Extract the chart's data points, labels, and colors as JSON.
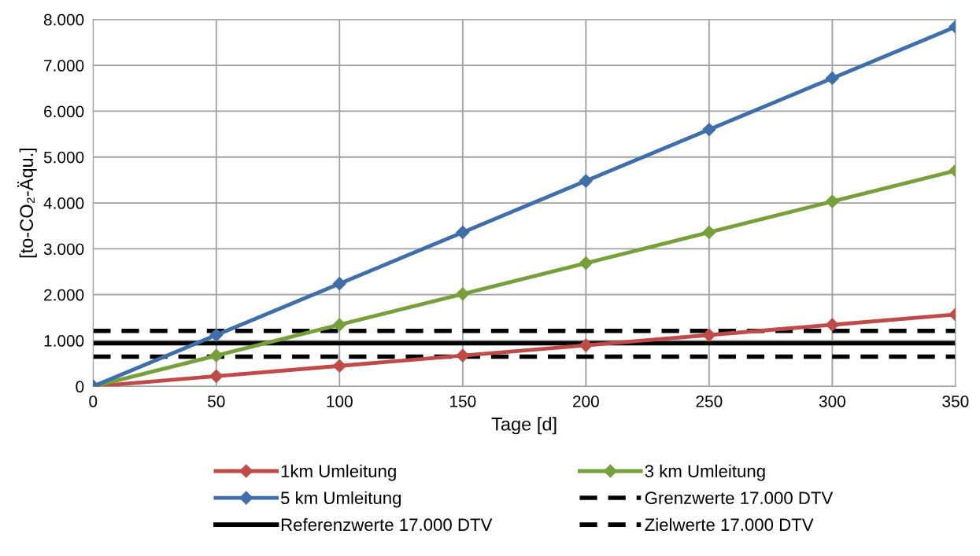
{
  "chart_data": {
    "type": "line",
    "xlabel": "Tage [d]",
    "ylabel": "[to-CO₂-Äqu.]",
    "x": [
      0,
      50,
      100,
      150,
      200,
      250,
      300,
      350
    ],
    "series": [
      {
        "name": "1km Umleitung",
        "color": "#be4b48",
        "values": [
          0,
          224,
          448,
          672,
          896,
          1120,
          1344,
          1568
        ]
      },
      {
        "name": "3 km Umleitung",
        "color": "#77a03b",
        "values": [
          0,
          672,
          1344,
          2016,
          2688,
          3360,
          4032,
          4704
        ]
      },
      {
        "name": "5 km Umleitung",
        "color": "#3f6ea8",
        "values": [
          0,
          1120,
          2240,
          3360,
          4480,
          5600,
          6720,
          7840
        ]
      }
    ],
    "ref_lines": [
      {
        "axis": "y",
        "value": 1210,
        "label": "Grenzwerte 17.000 DTV",
        "color": "#000000",
        "line_style": "dashed"
      },
      {
        "axis": "y",
        "value": 940,
        "label": "Referenzwerte 17.000 DTV",
        "color": "#000000",
        "line_style": "solid"
      },
      {
        "axis": "y",
        "value": 650,
        "label": "Zielwerte 17.000 DTV",
        "color": "#000000",
        "line_style": "dashed"
      }
    ],
    "xlim": [
      0,
      350
    ],
    "xticks": [
      0,
      50,
      100,
      150,
      200,
      250,
      300,
      350
    ],
    "ylim": [
      0,
      8000
    ],
    "yticks": [
      0,
      {
        "value": 1000,
        "label": "1.000"
      },
      {
        "value": 2000,
        "label": "2.000"
      },
      {
        "value": 3000,
        "label": "3.000"
      },
      {
        "value": 4000,
        "label": "4.000"
      },
      {
        "value": 5000,
        "label": "5.000"
      },
      {
        "value": 6000,
        "label": "6.000"
      },
      {
        "value": 7000,
        "label": "7.000"
      },
      {
        "value": 8000,
        "label": "8.000"
      }
    ],
    "grid": true,
    "legend": "bottom",
    "marker": "diamond",
    "line_style": "solid"
  }
}
